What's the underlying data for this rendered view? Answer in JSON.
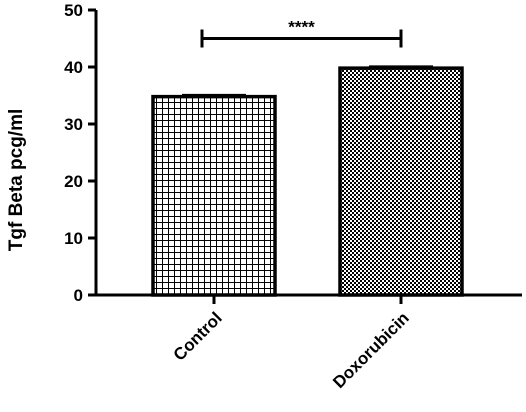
{
  "chart_data": {
    "type": "bar",
    "title": "",
    "xlabel": "",
    "ylabel": "Tgf Beta pcg/ml",
    "ylim": [
      0,
      50
    ],
    "yticks": [
      0,
      10,
      20,
      30,
      40,
      50
    ],
    "categories": [
      "Control",
      "Doxorubicin"
    ],
    "values": [
      34.8,
      39.8
    ],
    "error": [
      0.3,
      0.3
    ],
    "patterns": [
      "grid",
      "checker"
    ],
    "bar_fill_color": "#ffffff",
    "bar_stroke_color": "#000000",
    "significance": {
      "between": [
        "Control",
        "Doxorubicin"
      ],
      "label": "****",
      "y": 45
    },
    "grid": false,
    "legend": "none"
  }
}
